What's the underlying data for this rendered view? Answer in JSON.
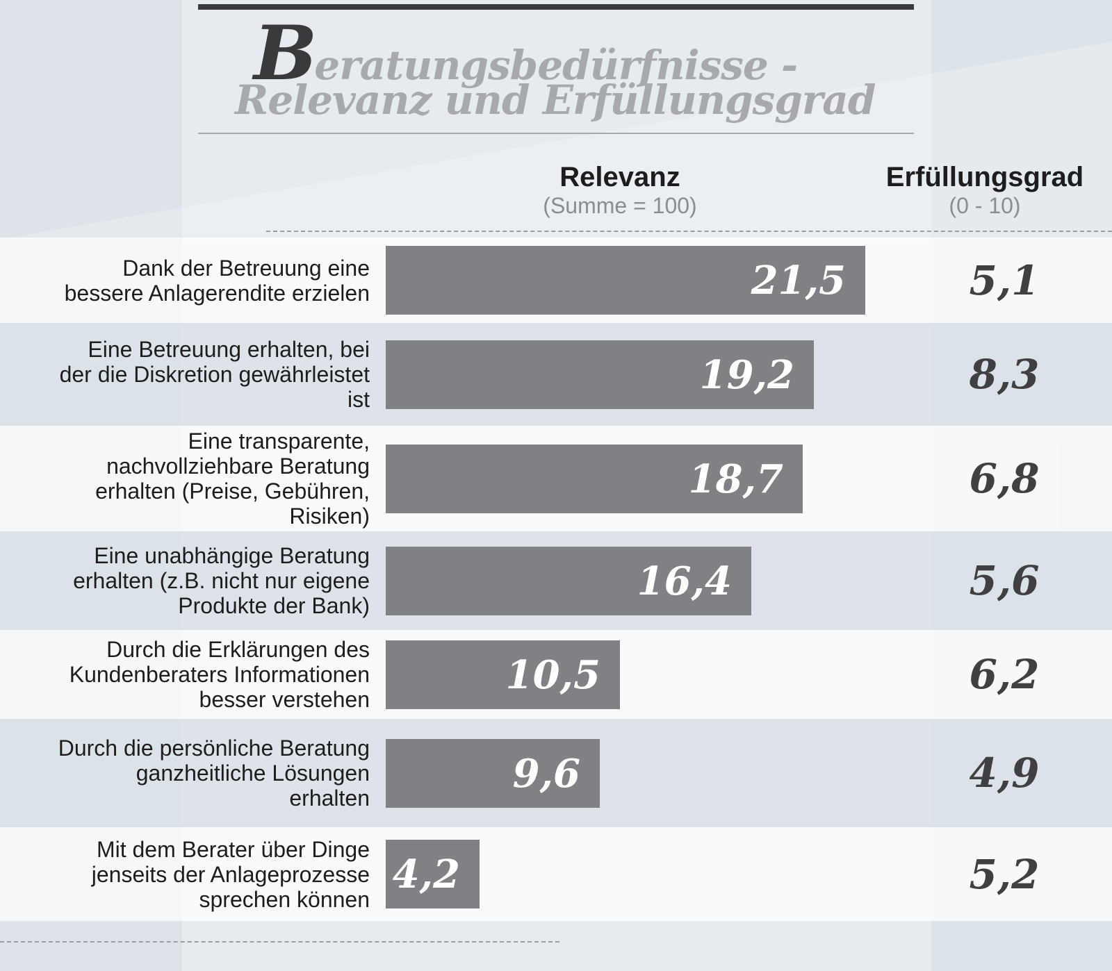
{
  "title": {
    "initial": "B",
    "line1_rest": "eratungsbedürfnisse -",
    "line2": "Relevanz und Erfüllungsgrad"
  },
  "columns": {
    "relevanz_header": "Relevanz",
    "relevanz_sub": "(Summe = 100)",
    "erfuellung_header": "Erfüllungsgrad",
    "erfuellung_sub": "(0 - 10)"
  },
  "colors": {
    "bar": "#808184",
    "title_dark": "#3a3a3c",
    "title_light": "#a7a9ac"
  },
  "chart_data": {
    "type": "bar",
    "orientation": "horizontal",
    "title": "Beratungsbedürfnisse - Relevanz und Erfüllungsgrad",
    "categories": [
      "Dank der Betreuung eine\nbessere Anlagerendite erzielen",
      "Eine Betreuung erhalten, bei\nder die Diskretion gewährleistet\nist",
      "Eine transparente,\nnachvollziehbare Beratung\nerhalten (Preise, Gebühren,\nRisiken)",
      "Eine unabhängige Beratung\nerhalten (z.B. nicht nur eigene\nProdukte der Bank)",
      "Durch die Erklärungen des\nKundenberaters Informationen\nbesser verstehen",
      "Durch die persönliche Beratung\nganzheitliche Lösungen\nerhalten",
      "Mit dem Berater über Dinge\njenseits der Anlageprozesse\nsprechen können"
    ],
    "series": [
      {
        "name": "Relevanz (Summe = 100)",
        "values": [
          21.5,
          19.2,
          18.7,
          16.4,
          10.5,
          9.6,
          4.2
        ],
        "labels": [
          "21,5",
          "19,2",
          "18,7",
          "16,4",
          "10,5",
          "9,6",
          "4,2"
        ]
      },
      {
        "name": "Erfüllungsgrad (0 - 10)",
        "values": [
          5.1,
          8.3,
          6.8,
          5.6,
          6.2,
          4.9,
          5.2
        ],
        "labels": [
          "5,1",
          "8,3",
          "6,8",
          "5,6",
          "6,2",
          "4,9",
          "5,2"
        ]
      }
    ],
    "xlim": [
      0,
      21.5
    ]
  }
}
